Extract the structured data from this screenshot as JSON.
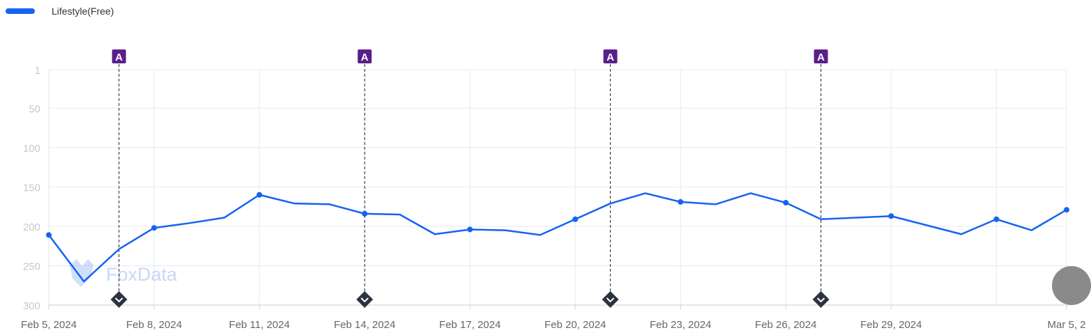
{
  "legend": {
    "label": "Lifestyle(Free)",
    "color": "#1463f3"
  },
  "watermark": {
    "text": "FoxData"
  },
  "colors": {
    "line": "#1463f3",
    "grid": "#e6e9ef",
    "ytick": "#c4c8cf",
    "xtick": "#666666",
    "marker_dark": "#2c3240",
    "badge": "#5b1f8c"
  },
  "chart_data": {
    "type": "line",
    "title": "",
    "xlabel": "",
    "ylabel": "",
    "y_reversed": true,
    "ylim": [
      1,
      300
    ],
    "yticks": [
      1,
      50,
      100,
      150,
      200,
      250,
      300
    ],
    "xlim": [
      "2024-02-05",
      "2024-03-05"
    ],
    "x_tick_dates": [
      "2024-02-05",
      "2024-02-08",
      "2024-02-11",
      "2024-02-14",
      "2024-02-17",
      "2024-02-20",
      "2024-02-23",
      "2024-02-26",
      "2024-02-29",
      "2024-03-05"
    ],
    "x_tick_labels": [
      "Feb 5, 2024",
      "Feb 8, 2024",
      "Feb 11, 2024",
      "Feb 14, 2024",
      "Feb 17, 2024",
      "Feb 20, 2024",
      "Feb 23, 2024",
      "Feb 26, 2024",
      "Feb 29, 2024",
      "Mar 5, 2"
    ],
    "grid": true,
    "legend_position": "top-left",
    "series": [
      {
        "name": "Lifestyle(Free)",
        "points": [
          {
            "x": "2024-02-05",
            "y": 211,
            "dot": true
          },
          {
            "x": "2024-02-06",
            "y": 270,
            "dot": false
          },
          {
            "x": "2024-02-07",
            "y": 229,
            "dot": false
          },
          {
            "x": "2024-02-08",
            "y": 202,
            "dot": true
          },
          {
            "x": "2024-02-09",
            "y": 196,
            "dot": false
          },
          {
            "x": "2024-02-10",
            "y": 189,
            "dot": false
          },
          {
            "x": "2024-02-11",
            "y": 160,
            "dot": true
          },
          {
            "x": "2024-02-12",
            "y": 171,
            "dot": false
          },
          {
            "x": "2024-02-13",
            "y": 172,
            "dot": false
          },
          {
            "x": "2024-02-14",
            "y": 184,
            "dot": true
          },
          {
            "x": "2024-02-15",
            "y": 185,
            "dot": false
          },
          {
            "x": "2024-02-16",
            "y": 210,
            "dot": false
          },
          {
            "x": "2024-02-17",
            "y": 204,
            "dot": true
          },
          {
            "x": "2024-02-18",
            "y": 205,
            "dot": false
          },
          {
            "x": "2024-02-19",
            "y": 211,
            "dot": false
          },
          {
            "x": "2024-02-20",
            "y": 191,
            "dot": true
          },
          {
            "x": "2024-02-21",
            "y": 171,
            "dot": false
          },
          {
            "x": "2024-02-22",
            "y": 158,
            "dot": false
          },
          {
            "x": "2024-02-23",
            "y": 169,
            "dot": true
          },
          {
            "x": "2024-02-24",
            "y": 172,
            "dot": false
          },
          {
            "x": "2024-02-25",
            "y": 158,
            "dot": false
          },
          {
            "x": "2024-02-26",
            "y": 170,
            "dot": true
          },
          {
            "x": "2024-02-27",
            "y": 191,
            "dot": false
          },
          {
            "x": "2024-02-29",
            "y": 187,
            "dot": true
          },
          {
            "x": "2024-03-02",
            "y": 210,
            "dot": false
          },
          {
            "x": "2024-03-03",
            "y": 191,
            "dot": true
          },
          {
            "x": "2024-03-04",
            "y": 205,
            "dot": false
          },
          {
            "x": "2024-03-05",
            "y": 179,
            "dot": true
          }
        ]
      }
    ],
    "event_markers": [
      {
        "x": "2024-02-07",
        "badge": "A"
      },
      {
        "x": "2024-02-14",
        "badge": "A"
      },
      {
        "x": "2024-02-21",
        "badge": "A"
      },
      {
        "x": "2024-02-27",
        "badge": "A"
      }
    ]
  }
}
